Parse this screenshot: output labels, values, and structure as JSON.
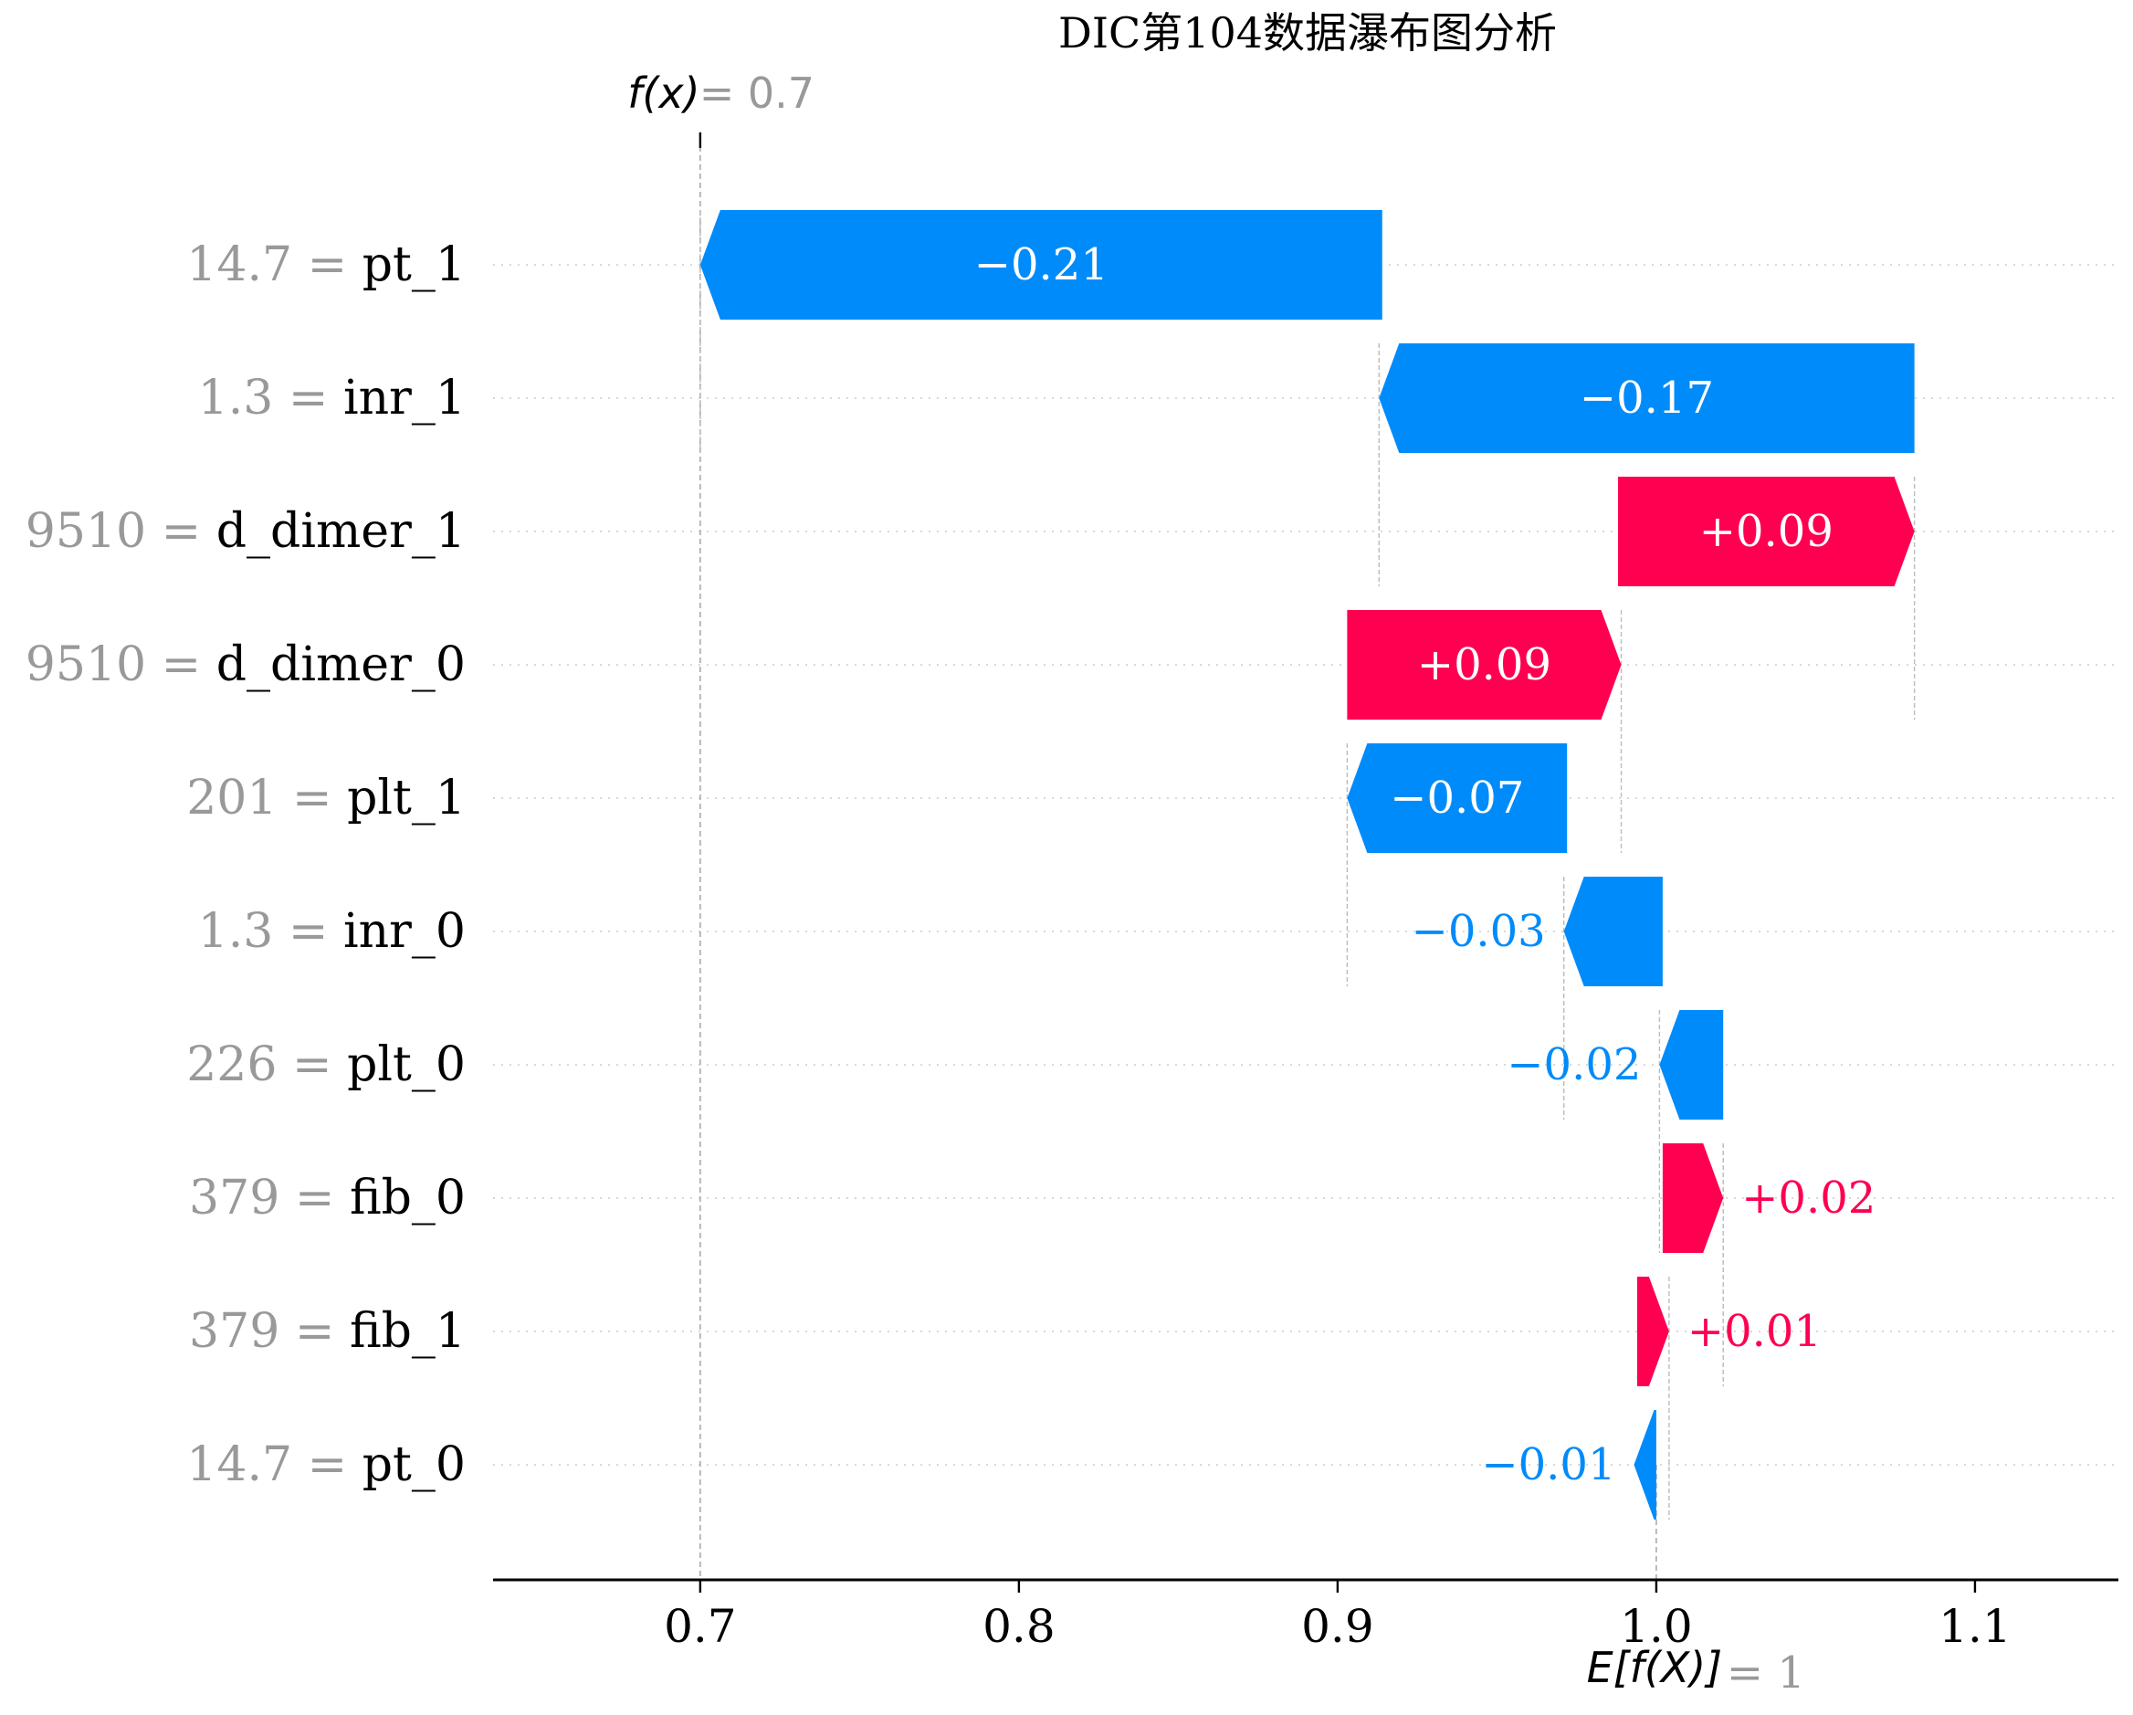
{
  "chart_data": {
    "type": "waterfall",
    "title": "DIC第104数据瀑布图分析",
    "fx_label": "f(x)",
    "fx_value_text": "= 0.7",
    "fx": 0.7,
    "base_label": "E[f(X)]",
    "base_value_text": "= 1",
    "base_value": 1.0,
    "xlim": [
      0.635,
      1.145
    ],
    "xticks": [
      0.7,
      0.8,
      0.9,
      1.0,
      1.1
    ],
    "xtick_labels": [
      "0.7",
      "0.8",
      "0.9",
      "1.0",
      "1.1"
    ],
    "colors": {
      "positive": "#ff0051",
      "negative": "#008bfb",
      "axis": "#000000",
      "grid": "#cccccc",
      "muted": "#999999"
    },
    "features": [
      {
        "value_label": "14.7",
        "name": "pt_1",
        "start": 0.914,
        "end": 0.7,
        "label": "−0.21"
      },
      {
        "value_label": "1.3",
        "name": "inr_1",
        "start": 1.081,
        "end": 0.913,
        "label": "−0.17"
      },
      {
        "value_label": "9510",
        "name": "d_dimer_1",
        "start": 0.988,
        "end": 1.081,
        "label": "+0.09"
      },
      {
        "value_label": "9510",
        "name": "d_dimer_0",
        "start": 0.903,
        "end": 0.989,
        "label": "+0.09"
      },
      {
        "value_label": "201",
        "name": "plt_1",
        "start": 0.972,
        "end": 0.903,
        "label": "−0.07"
      },
      {
        "value_label": "1.3",
        "name": "inr_0",
        "start": 1.002,
        "end": 0.971,
        "label": "−0.03"
      },
      {
        "value_label": "226",
        "name": "plt_0",
        "start": 1.021,
        "end": 1.001,
        "label": "−0.02"
      },
      {
        "value_label": "379",
        "name": "fib_0",
        "start": 1.002,
        "end": 1.021,
        "label": "+0.02"
      },
      {
        "value_label": "379",
        "name": "fib_1",
        "start": 0.994,
        "end": 1.004,
        "label": "+0.01"
      },
      {
        "value_label": "14.7",
        "name": "pt_0",
        "start": 1.0,
        "end": 0.993,
        "label": "−0.01"
      }
    ]
  }
}
